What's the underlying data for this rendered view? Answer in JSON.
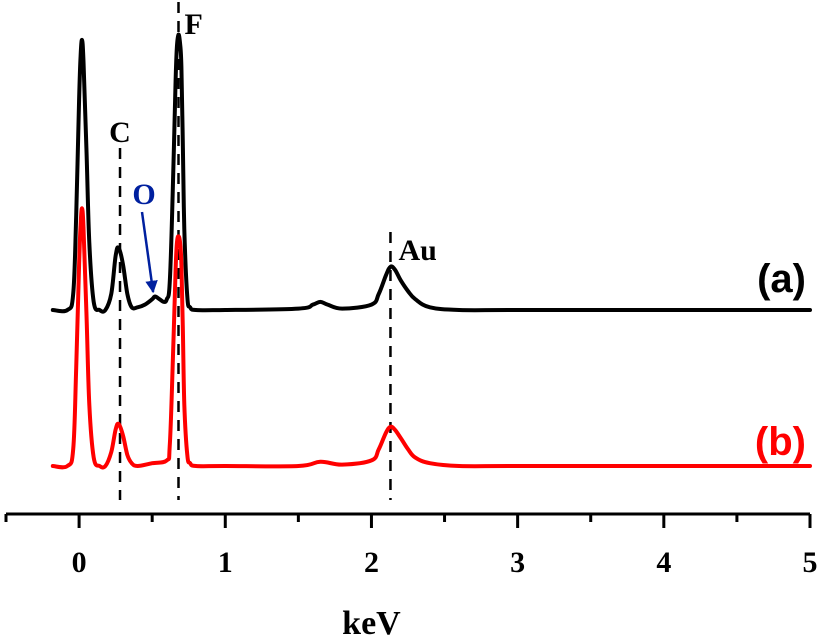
{
  "chart_data": {
    "type": "line",
    "xlabel": "keV",
    "ylabel": "",
    "xlim": [
      -0.5,
      5
    ],
    "x_ticks": [
      {
        "value": 0,
        "label": "0"
      },
      {
        "value": 1,
        "label": "1"
      },
      {
        "value": 2,
        "label": "2"
      },
      {
        "value": 3,
        "label": "3"
      },
      {
        "value": 4,
        "label": "4"
      },
      {
        "value": 5,
        "label": "5"
      }
    ],
    "x_minor_ticks": [
      -0.5,
      0.5,
      1.5,
      2.5,
      3.5,
      4.5
    ],
    "y_axis_shown": false,
    "grid": false,
    "series": [
      {
        "name": "(a)",
        "color": "#000000",
        "baseline": 0,
        "x": [
          -0.18,
          -0.08,
          -0.04,
          -0.02,
          0.0,
          0.01,
          0.02,
          0.03,
          0.05,
          0.07,
          0.1,
          0.14,
          0.18,
          0.22,
          0.25,
          0.27,
          0.3,
          0.33,
          0.36,
          0.4,
          0.45,
          0.5,
          0.52,
          0.55,
          0.58,
          0.6,
          0.62,
          0.64,
          0.66,
          0.67,
          0.68,
          0.69,
          0.7,
          0.71,
          0.72,
          0.74,
          0.76,
          0.8,
          1.0,
          1.5,
          1.6,
          1.65,
          1.7,
          1.8,
          2.0,
          2.05,
          2.1,
          2.13,
          2.16,
          2.2,
          2.25,
          2.3,
          2.4,
          2.6,
          3.0,
          4.0,
          5.0
        ],
        "values": [
          0,
          0,
          0.06,
          0.35,
          0.78,
          0.94,
          1.0,
          0.92,
          0.6,
          0.25,
          0.03,
          0,
          0,
          0.06,
          0.2,
          0.23,
          0.17,
          0.06,
          0.01,
          0.01,
          0.02,
          0.04,
          0.05,
          0.04,
          0.03,
          0.04,
          0.1,
          0.42,
          0.85,
          0.98,
          1.02,
          0.99,
          0.9,
          0.6,
          0.3,
          0.05,
          0.01,
          0,
          0,
          0.005,
          0.02,
          0.03,
          0.02,
          0.005,
          0.02,
          0.06,
          0.13,
          0.16,
          0.15,
          0.11,
          0.07,
          0.04,
          0.01,
          0,
          0,
          0,
          0
        ]
      },
      {
        "name": "(b)",
        "color": "#ff0000",
        "baseline": 0,
        "x": [
          -0.18,
          -0.08,
          -0.04,
          -0.02,
          0.0,
          0.01,
          0.02,
          0.03,
          0.05,
          0.07,
          0.1,
          0.14,
          0.18,
          0.22,
          0.25,
          0.27,
          0.3,
          0.33,
          0.36,
          0.4,
          0.5,
          0.6,
          0.62,
          0.64,
          0.66,
          0.67,
          0.68,
          0.69,
          0.7,
          0.71,
          0.72,
          0.74,
          0.76,
          0.8,
          1.0,
          1.5,
          1.65,
          1.8,
          2.0,
          2.05,
          2.1,
          2.13,
          2.16,
          2.2,
          2.25,
          2.3,
          2.4,
          2.6,
          3.0,
          4.0,
          5.0
        ],
        "values": [
          0,
          0,
          0.06,
          0.35,
          0.72,
          0.86,
          0.92,
          0.85,
          0.55,
          0.22,
          0.03,
          0,
          0,
          0.05,
          0.13,
          0.15,
          0.11,
          0.04,
          0.01,
          0,
          0.01,
          0.02,
          0.07,
          0.35,
          0.7,
          0.8,
          0.82,
          0.8,
          0.72,
          0.48,
          0.22,
          0.04,
          0.01,
          0,
          0,
          0,
          0.015,
          0.005,
          0.02,
          0.06,
          0.12,
          0.14,
          0.13,
          0.1,
          0.06,
          0.03,
          0.01,
          0,
          0,
          0,
          0
        ]
      }
    ],
    "peak_markers": [
      {
        "label": "C",
        "x": 0.28,
        "color": "#000000"
      },
      {
        "label": "F",
        "x": 0.68,
        "color": "#000000"
      },
      {
        "label": "Au",
        "x": 2.13,
        "color": "#000000"
      }
    ],
    "annotation": {
      "label": "O",
      "color": "#00209f",
      "points_to_x": 0.52,
      "arrow": true
    }
  }
}
